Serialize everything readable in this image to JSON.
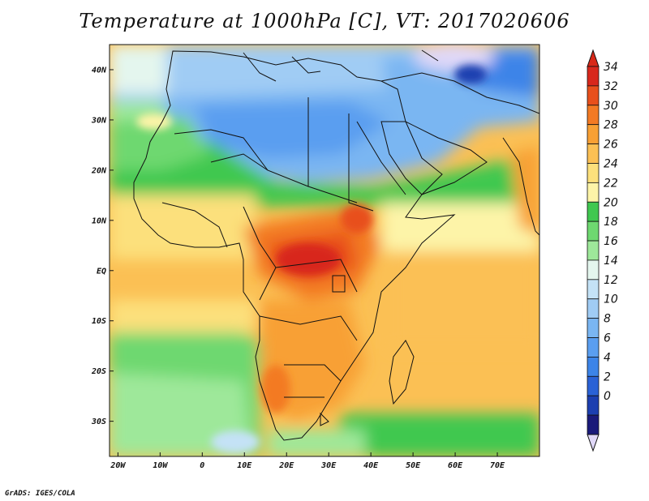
{
  "title": "Temperature at 1000hPa [C], VT: 2017020606",
  "credit": "GrADS: IGES/COLA",
  "map": {
    "lon_range": [
      -22,
      80
    ],
    "lat_range": [
      -37,
      45
    ],
    "lat_ticks": [
      {
        "value": 40,
        "label": "40N"
      },
      {
        "value": 30,
        "label": "30N"
      },
      {
        "value": 20,
        "label": "20N"
      },
      {
        "value": 10,
        "label": "10N"
      },
      {
        "value": 0,
        "label": "EQ"
      },
      {
        "value": -10,
        "label": "10S"
      },
      {
        "value": -20,
        "label": "20S"
      },
      {
        "value": -30,
        "label": "30S"
      }
    ],
    "lon_ticks": [
      {
        "value": -20,
        "label": "20W"
      },
      {
        "value": -10,
        "label": "10W"
      },
      {
        "value": 0,
        "label": "0"
      },
      {
        "value": 10,
        "label": "10E"
      },
      {
        "value": 20,
        "label": "20E"
      },
      {
        "value": 30,
        "label": "30E"
      },
      {
        "value": 40,
        "label": "40E"
      },
      {
        "value": 50,
        "label": "50E"
      },
      {
        "value": 60,
        "label": "60E"
      },
      {
        "value": 70,
        "label": "70E"
      }
    ]
  },
  "colorbar": {
    "levels": [
      0,
      2,
      4,
      6,
      8,
      10,
      12,
      14,
      16,
      18,
      20,
      22,
      24,
      26,
      28,
      30,
      32,
      34
    ],
    "colors": [
      "#1a1a7a",
      "#1c3fb0",
      "#2a62d6",
      "#3c84e8",
      "#5a9ef0",
      "#7ab6f2",
      "#a0ccf4",
      "#c4e2f6",
      "#e4f6ee",
      "#9ee89a",
      "#6ed870",
      "#40c850",
      "#fdf4a8",
      "#fce07c",
      "#fbc054",
      "#f8a034",
      "#f37a24",
      "#e8501c",
      "#d8281c"
    ],
    "under_color": "#e0d8f8",
    "over_color": "#d82818"
  }
}
